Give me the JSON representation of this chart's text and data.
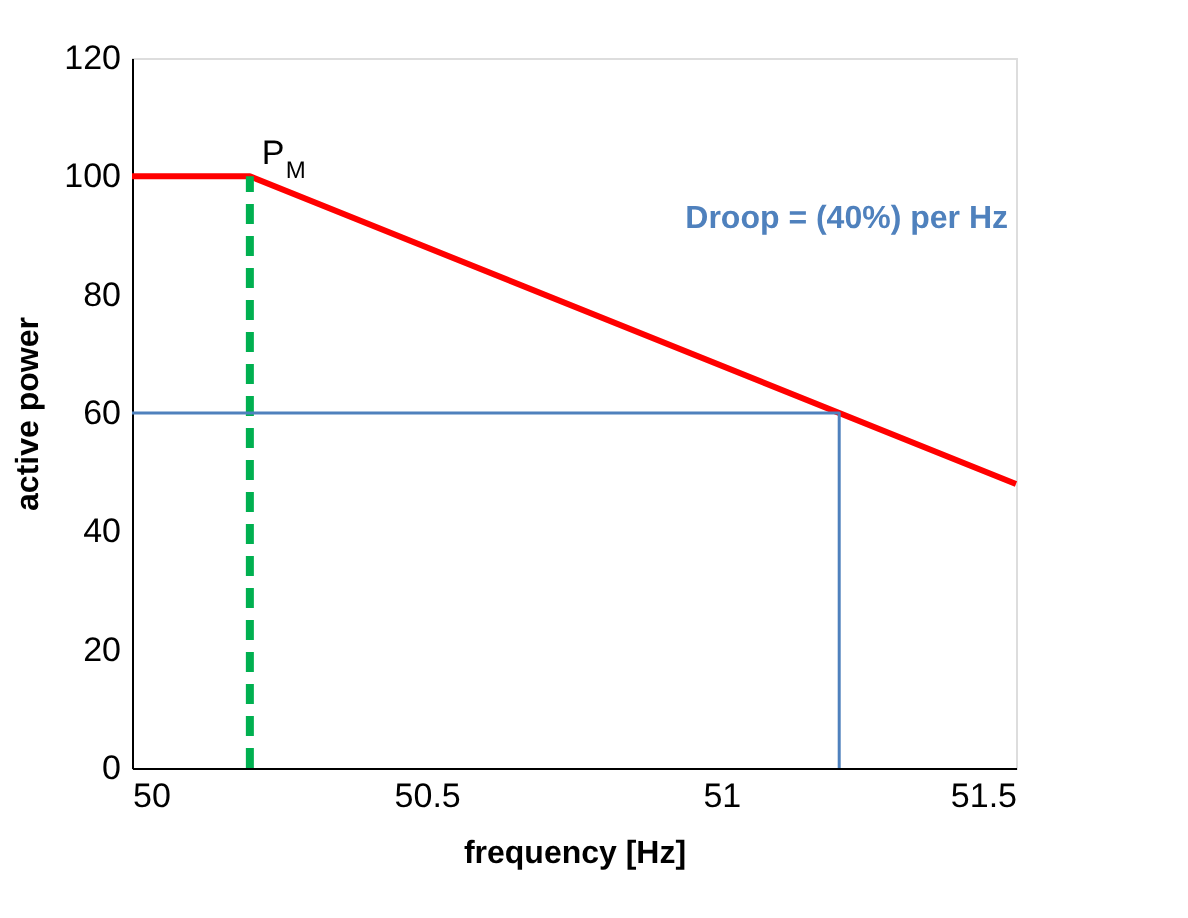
{
  "chart_data": {
    "type": "line",
    "xlabel": "frequency [Hz]",
    "ylabel": "active power",
    "xlim": [
      50,
      51.5
    ],
    "xticks": [
      50,
      50.5,
      51,
      51.5
    ],
    "ylim": [
      0,
      120
    ],
    "yticks": [
      0,
      20,
      40,
      60,
      80,
      100,
      120
    ],
    "grid": false,
    "series": [
      {
        "color": "#ff0000",
        "x": [
          50,
          50.2,
          51.5
        ],
        "values": [
          100,
          100,
          48
        ],
        "line_style": "solid"
      },
      {
        "color": "#00b050",
        "x": [
          50.2,
          50.2
        ],
        "values": [
          0,
          100
        ],
        "line_style": "dashed"
      },
      {
        "color": "#4f81bd",
        "x": [
          50,
          51.2,
          51.2
        ],
        "values": [
          60,
          60,
          0
        ],
        "line_style": "solid"
      }
    ],
    "annotations": [
      {
        "text": "P$_{M}$",
        "x": 50.2,
        "y": 100
      },
      "Droop = (40%) per Hz"
    ]
  }
}
